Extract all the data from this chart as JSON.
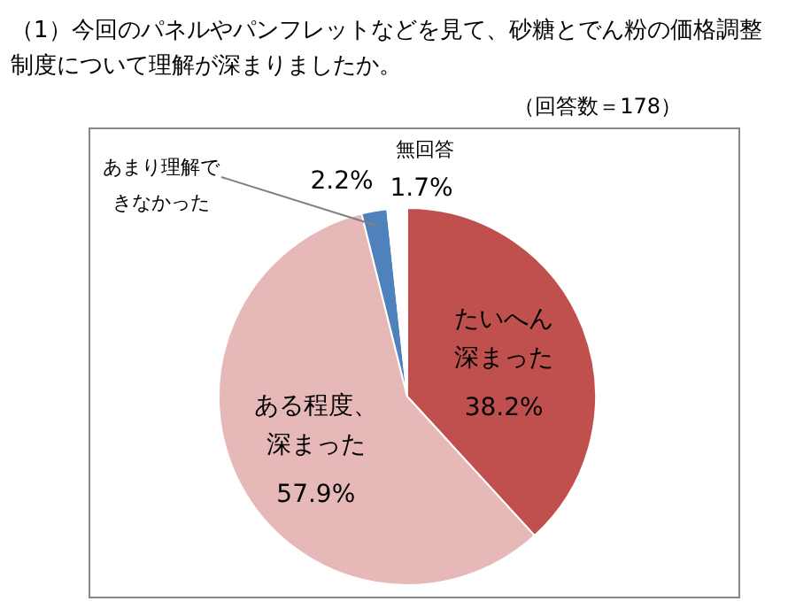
{
  "chart_data": {
    "type": "pie",
    "title": "（1）今回のパネルやパンフレットなどを見て、砂糖とでん粉の価格調整制度について理解が深まりましたか。",
    "subtitle": "（回答数＝178）",
    "categories": [
      "たいへん深まった",
      "ある程度、深まった",
      "あまり理解できなかった",
      "無回答"
    ],
    "values": [
      38.2,
      57.9,
      2.2,
      1.7
    ],
    "colors": [
      "#c0504d",
      "#e6b9b8",
      "#4f81bd",
      "#ffffff"
    ],
    "value_labels": [
      "38.2%",
      "57.9%",
      "2.2%",
      "1.7%"
    ],
    "legend": false
  }
}
